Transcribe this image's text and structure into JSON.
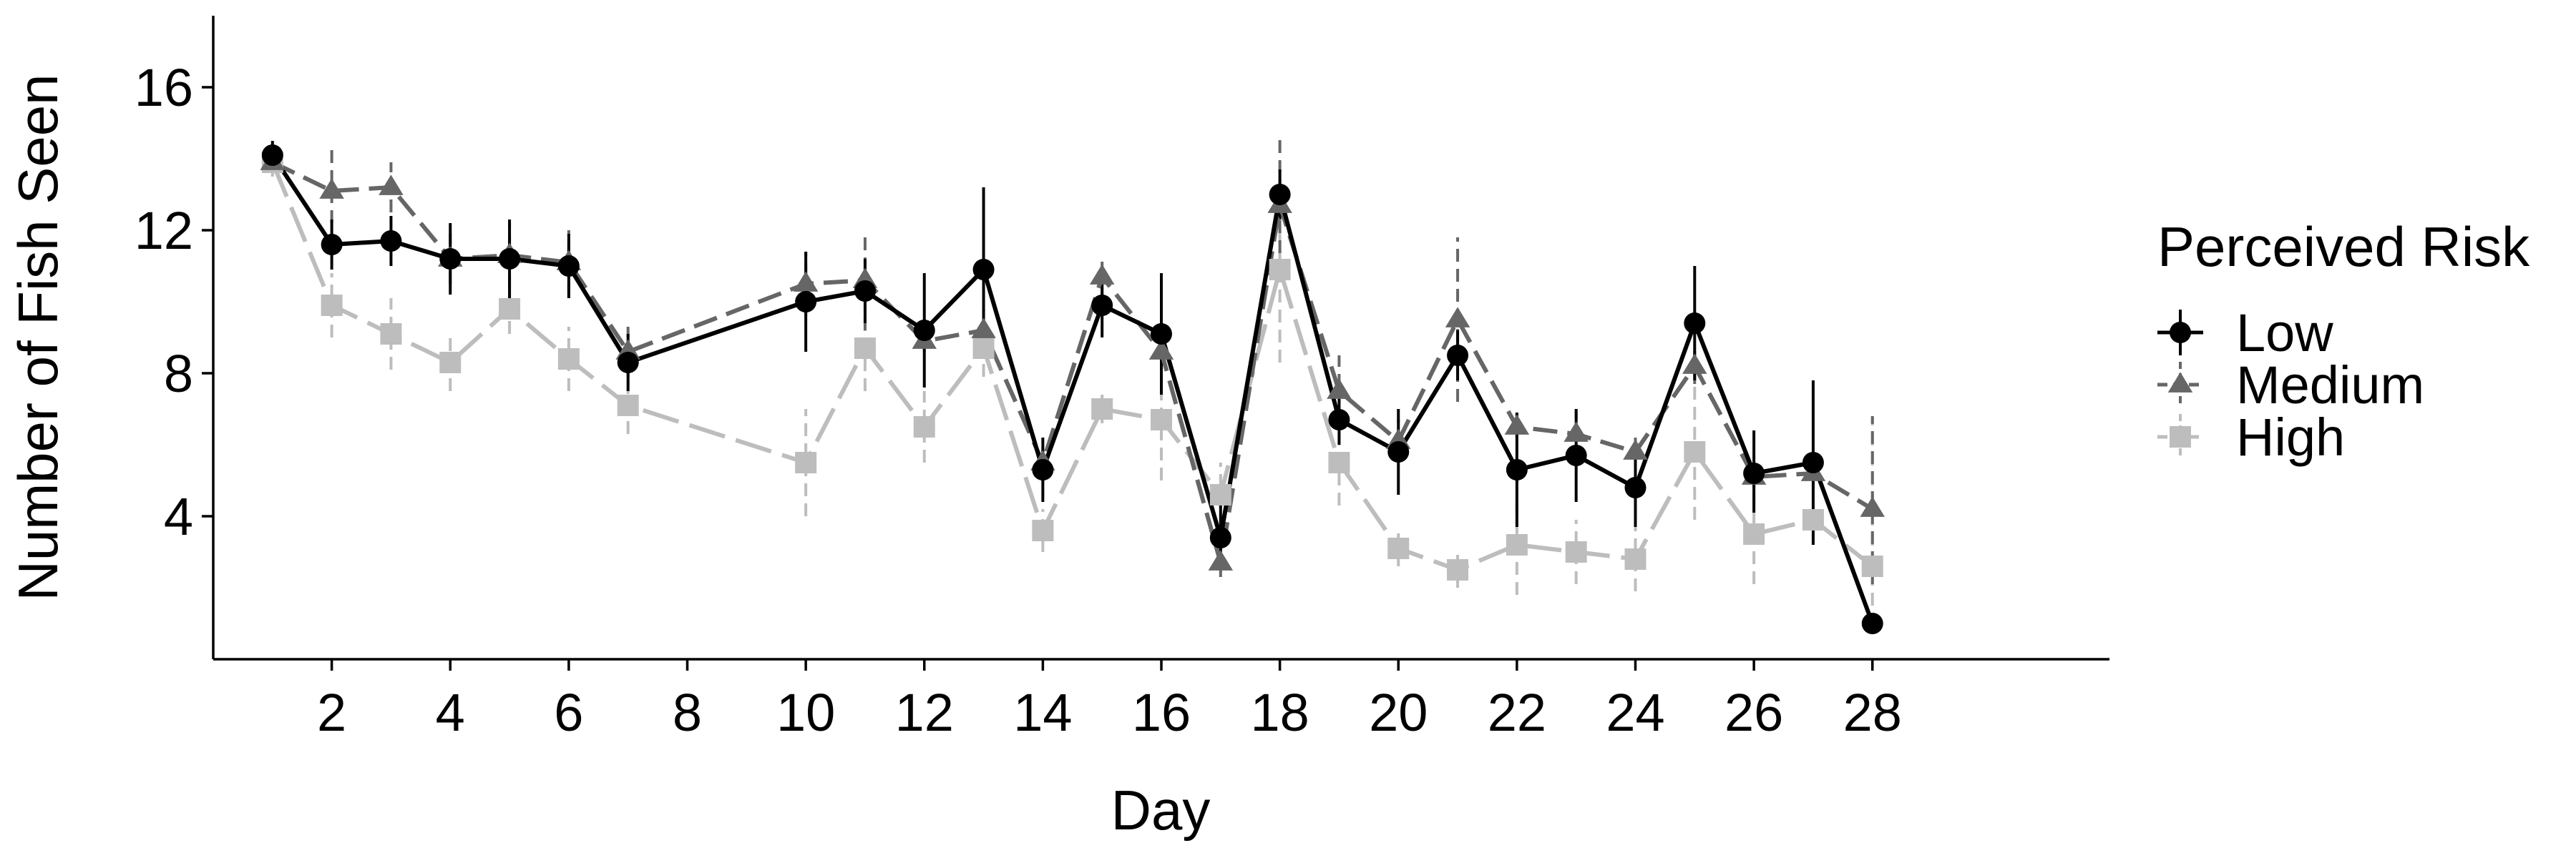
{
  "chart_data": {
    "type": "line",
    "title": "",
    "xlabel": "Day",
    "ylabel": "Number of Fish Seen",
    "x_ticks": [
      2,
      4,
      6,
      8,
      10,
      12,
      14,
      16,
      18,
      20,
      22,
      24,
      26,
      28
    ],
    "y_ticks": [
      4,
      8,
      12,
      16
    ],
    "xlim": [
      0,
      32
    ],
    "ylim": [
      0,
      18
    ],
    "grid": false,
    "legend": {
      "title": "Perceived Risk",
      "placement": "right",
      "entries": [
        "Low",
        "Medium",
        "High"
      ]
    },
    "series": [
      {
        "name": "Low",
        "color": "#000000",
        "marker": "circle",
        "line_style": "solid",
        "x": [
          1,
          2,
          3,
          4,
          5,
          6,
          7,
          10,
          11,
          12,
          13,
          14,
          15,
          16,
          17,
          18,
          19,
          20,
          21,
          22,
          23,
          24,
          25,
          26,
          27,
          28
        ],
        "y": [
          14.1,
          11.6,
          11.7,
          11.2,
          11.2,
          11.0,
          8.3,
          10.0,
          10.3,
          9.2,
          10.9,
          5.3,
          9.9,
          9.1,
          3.4,
          13.0,
          6.7,
          5.8,
          8.5,
          5.3,
          5.7,
          4.8,
          9.4,
          5.2,
          5.5,
          1.0
        ],
        "y_low": [
          13.8,
          10.9,
          11.0,
          10.2,
          10.1,
          10.1,
          7.5,
          8.6,
          9.4,
          7.6,
          8.6,
          4.4,
          9.0,
          7.4,
          2.5,
          12.3,
          6.0,
          4.6,
          7.8,
          3.7,
          4.4,
          3.7,
          7.8,
          4.1,
          3.2,
          0.8
        ],
        "y_high": [
          14.5,
          12.3,
          12.4,
          12.2,
          12.3,
          11.9,
          9.1,
          11.4,
          11.2,
          10.8,
          13.2,
          6.2,
          10.8,
          10.8,
          4.3,
          13.7,
          7.4,
          7.0,
          9.2,
          6.9,
          7.0,
          5.9,
          11.0,
          6.4,
          7.8,
          1.2
        ]
      },
      {
        "name": "Medium",
        "color": "#666666",
        "marker": "triangle",
        "line_style": "dashed",
        "x": [
          1,
          2,
          3,
          4,
          5,
          6,
          7,
          10,
          11,
          12,
          13,
          14,
          15,
          16,
          17,
          18,
          19,
          20,
          21,
          22,
          23,
          24,
          25,
          26,
          27,
          28
        ],
        "y": [
          13.9,
          13.1,
          13.2,
          11.2,
          11.3,
          11.1,
          8.6,
          10.5,
          10.6,
          8.9,
          9.2,
          5.5,
          10.7,
          8.6,
          2.7,
          12.7,
          7.5,
          6.1,
          9.5,
          6.5,
          6.3,
          5.8,
          8.2,
          5.1,
          5.2,
          4.2
        ],
        "y_low": [
          13.6,
          12.2,
          12.5,
          10.5,
          10.4,
          10.2,
          7.9,
          9.6,
          9.2,
          8.6,
          8.6,
          5.0,
          10.2,
          7.9,
          2.3,
          10.8,
          6.5,
          5.5,
          7.2,
          6.2,
          5.6,
          5.4,
          7.7,
          4.8,
          4.8,
          2.1
        ],
        "y_high": [
          14.2,
          14.3,
          13.9,
          11.9,
          12.2,
          12.0,
          9.3,
          11.4,
          12.0,
          9.2,
          9.8,
          6.0,
          11.2,
          9.3,
          3.1,
          14.7,
          8.5,
          6.7,
          11.8,
          6.8,
          7.0,
          6.2,
          8.7,
          5.4,
          5.6,
          6.8
        ]
      },
      {
        "name": "High",
        "color": "#bdbdbd",
        "marker": "square",
        "line_style": "longdash",
        "x": [
          1,
          2,
          3,
          4,
          5,
          6,
          7,
          10,
          11,
          12,
          13,
          14,
          15,
          16,
          17,
          18,
          19,
          20,
          21,
          22,
          23,
          24,
          25,
          26,
          27,
          28
        ],
        "y": [
          13.9,
          9.9,
          9.1,
          8.3,
          9.8,
          8.4,
          7.1,
          5.5,
          8.7,
          6.5,
          8.7,
          3.6,
          7.0,
          6.7,
          4.6,
          10.9,
          5.5,
          3.1,
          2.5,
          3.2,
          3.0,
          2.8,
          5.8,
          3.5,
          3.9,
          2.6
        ],
        "y_low": [
          13.5,
          9.0,
          8.1,
          7.5,
          9.1,
          7.5,
          6.3,
          4.0,
          7.5,
          5.5,
          7.9,
          3.0,
          6.6,
          5.0,
          3.7,
          8.3,
          4.3,
          2.6,
          2.0,
          1.8,
          2.1,
          1.9,
          3.9,
          2.1,
          3.4,
          1.5
        ],
        "y_high": [
          14.3,
          10.8,
          10.1,
          9.1,
          10.5,
          9.3,
          7.9,
          7.0,
          9.9,
          7.5,
          9.5,
          4.2,
          7.4,
          8.4,
          5.5,
          13.5,
          6.7,
          3.6,
          3.0,
          4.6,
          3.9,
          3.7,
          7.7,
          4.9,
          4.4,
          6.8
        ]
      }
    ]
  }
}
